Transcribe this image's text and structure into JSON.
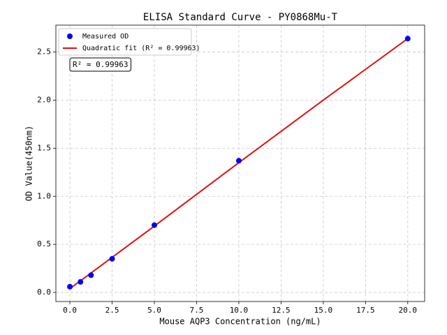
{
  "chart_data": {
    "type": "scatter",
    "title": "ELISA Standard Curve - PY0868Mu-T",
    "x_label": "Mouse AQP3 Concentration (ng/mL)",
    "y_label": "OD Value(450nm)",
    "annotation": "R² = 0.99963",
    "legend": "upper left",
    "grid": true,
    "xlim": [
      -0.83,
      21.0
    ],
    "ylim": [
      -0.094,
      2.78
    ],
    "xticks": [
      {
        "value": 0,
        "label": "0.0"
      },
      2.5,
      {
        "value": 5,
        "label": "5.0"
      },
      7.5,
      {
        "value": 10,
        "label": "10.0"
      },
      12.5,
      {
        "value": 15,
        "label": "15.0"
      },
      17.5,
      {
        "value": 20,
        "label": "20.0"
      }
    ],
    "yticks": [
      {
        "value": 0,
        "label": "0.0"
      },
      0.5,
      {
        "value": 1,
        "label": "1.0"
      },
      1.5,
      {
        "value": 2,
        "label": "2.0"
      },
      2.5
    ],
    "series": [
      {
        "name": "Measured OD",
        "type": "scatter",
        "color": "#0000ff",
        "x": [
          0,
          0.625,
          1.25,
          2.5,
          5,
          10,
          20
        ],
        "values": [
          0.06,
          0.11,
          0.18,
          0.35,
          0.7,
          1.37,
          2.64
        ]
      },
      {
        "name": "Quadratic fit (R² = 0.99963)",
        "type": "line",
        "color": "#e01010",
        "x": [
          0,
          5,
          10,
          15,
          20
        ],
        "values": [
          0.04,
          0.69,
          1.35,
          2.0,
          2.64
        ]
      }
    ]
  }
}
